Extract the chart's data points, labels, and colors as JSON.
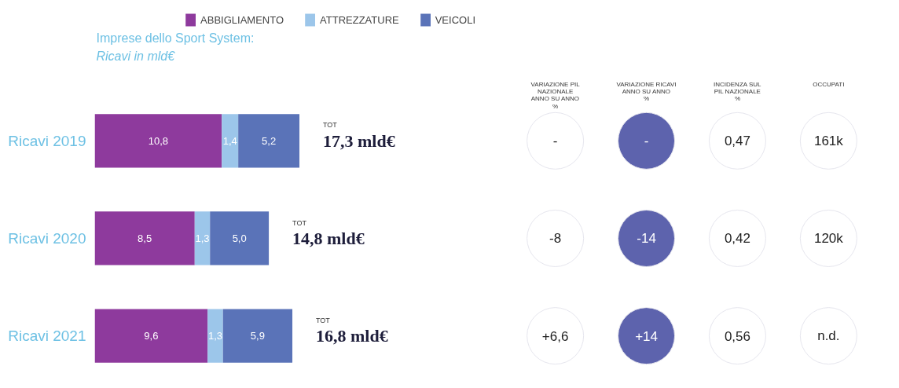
{
  "chart_data": [
    {
      "type": "bar",
      "orientation": "horizontal",
      "stacked": true,
      "title": "Imprese dello Sport System:",
      "subtitle": "Ricavi in mld€",
      "categories": [
        "Ricavi 2019",
        "Ricavi 2020",
        "Ricavi 2021"
      ],
      "series": [
        {
          "name": "ABBIGLIAMENTO",
          "color": "#8e3a9d",
          "values": [
            10.8,
            8.5,
            9.6
          ],
          "value_labels": [
            "10,8",
            "8,5",
            "9,6"
          ]
        },
        {
          "name": "ATTREZZATURE",
          "color": "#9cc6ea",
          "values": [
            1.4,
            1.3,
            1.3
          ],
          "value_labels": [
            "1,4",
            "1,3",
            "1,3"
          ]
        },
        {
          "name": "VEICOLI",
          "color": "#5a73b8",
          "values": [
            5.2,
            5.0,
            5.9
          ],
          "value_labels": [
            "5,2",
            "5,0",
            "5,9"
          ]
        }
      ],
      "totals": [
        "TOT 17,3 mld€",
        "TOT 14,8 mld€",
        "TOT 16,8 mld€"
      ],
      "tick_labels": "y",
      "grid": false,
      "legend": "top right"
    },
    {
      "type": "other",
      "categories": [
        "VARIAZIONE PIL\nNAZIONALE\nANNO SU ANNO\n%",
        "VARIAZIONE RICAVI\nANNO SU ANNO\n%",
        "INCIDENZA SUL\nPIL NAZIONALE\n%",
        "OCCUPATI"
      ],
      "cell_labels": [
        [
          "-",
          "-",
          "0,47",
          "161k"
        ],
        [
          "-8",
          "-14",
          "0,42",
          "120k"
        ],
        [
          "+6,6",
          "+14",
          "0,56",
          "n.d."
        ]
      ]
    }
  ]
}
